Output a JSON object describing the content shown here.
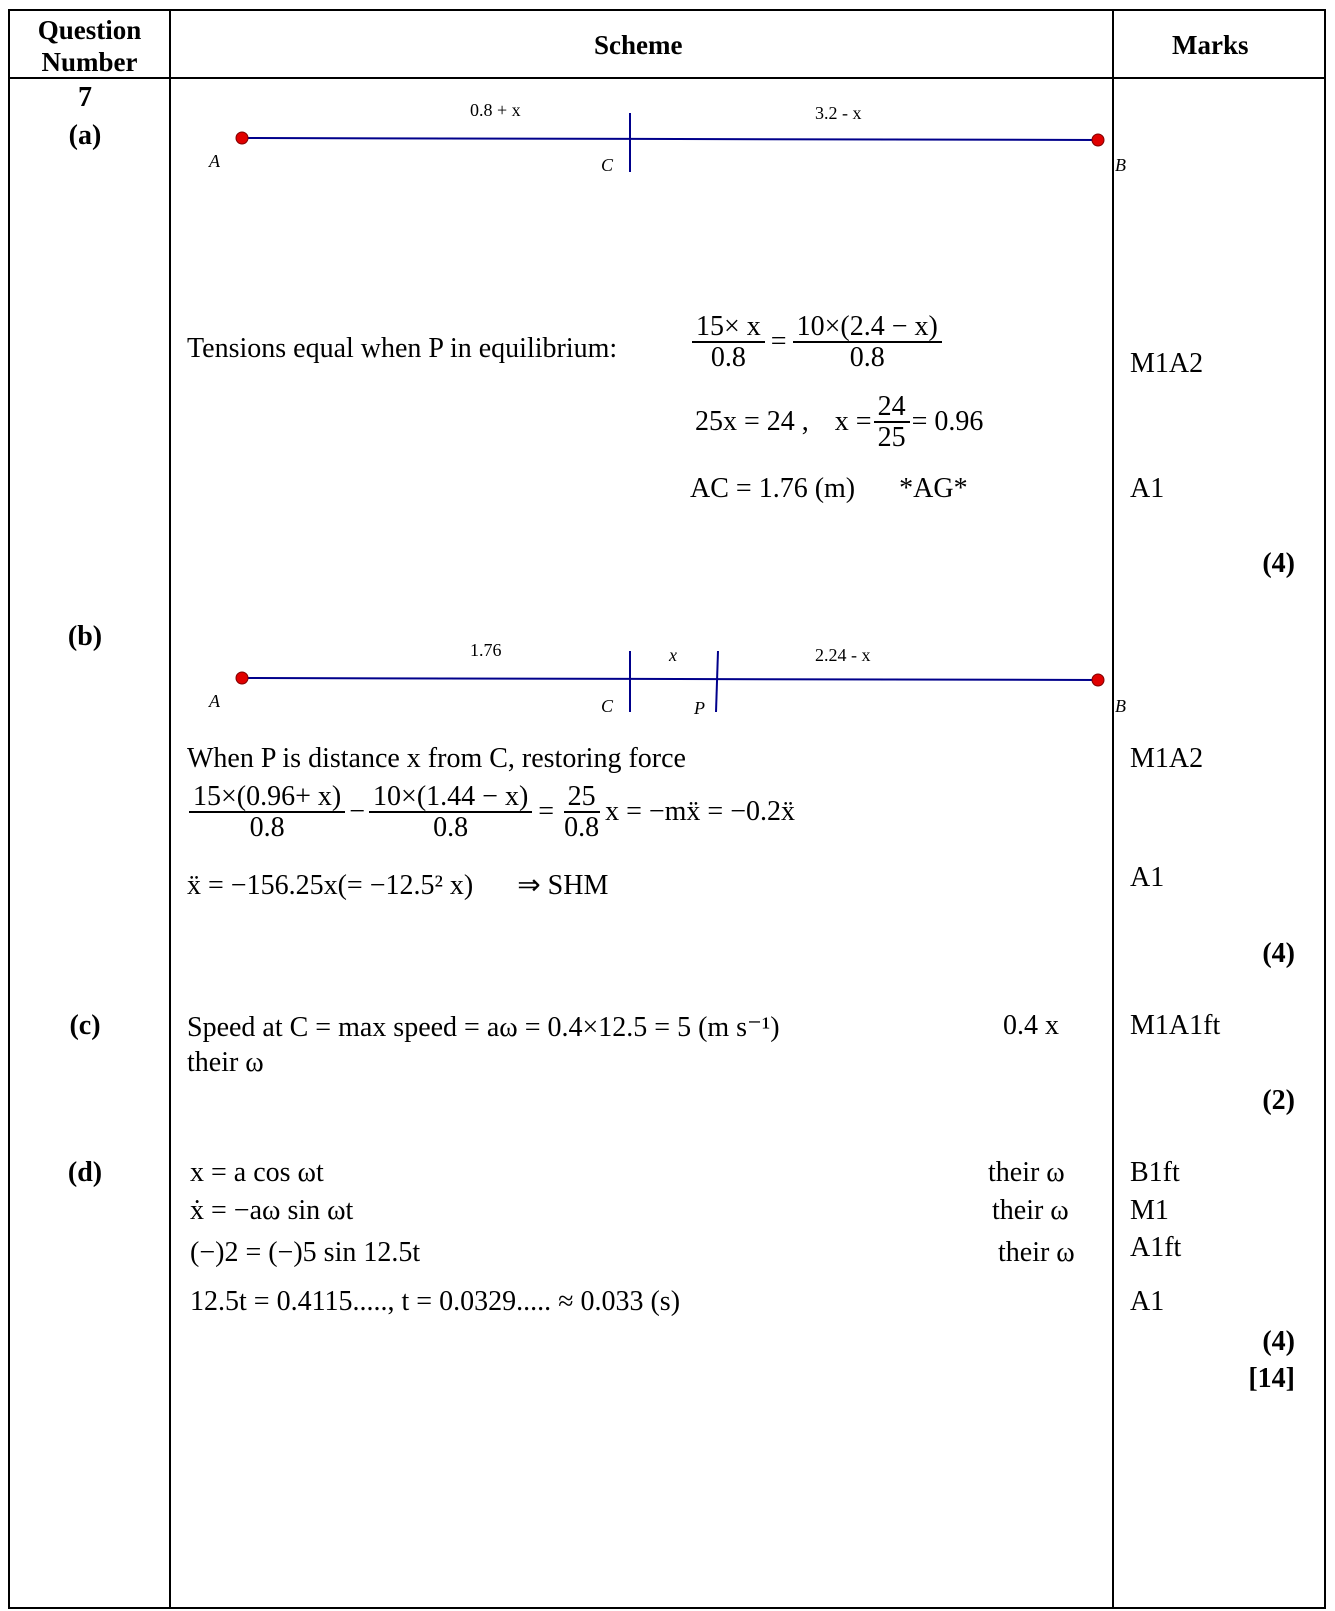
{
  "header": {
    "question_number": "Question Number",
    "scheme": "Scheme",
    "marks": "Marks"
  },
  "question": {
    "number": "7"
  },
  "part_a": {
    "label": "(a)",
    "diagram": {
      "left_len": "0.8 + x",
      "right_len": "3.2 - x",
      "A": "A",
      "C": "C",
      "B": "B"
    },
    "line1_text": "Tensions equal when P in equilibrium:",
    "eq1": {
      "lhs_num": "15× x",
      "lhs_den": "0.8",
      "rhs_num": "10×(2.4 − x)",
      "rhs_den": "0.8"
    },
    "line2_a": "25x = 24 ,",
    "line2_b": "x =",
    "line2_num": "24",
    "line2_den": "25",
    "line2_c": "= 0.96",
    "line3": "AC = 1.76 (m)",
    "line3_ag": "*AG*",
    "marks": [
      "M1A2",
      "A1"
    ],
    "total": "(4)"
  },
  "part_b": {
    "label": "(b)",
    "diagram": {
      "left_len": "1.76",
      "mid_len": "x",
      "right_len": "2.24 - x",
      "A": "A",
      "C": "C",
      "P": "P",
      "B": "B"
    },
    "line1": "When P is distance x from C, restoring force",
    "f1_num": "15×(0.96+ x)",
    "f1_den": "0.8",
    "f2_num": "10×(1.44 − x)",
    "f2_den": "0.8",
    "f3_num": "25",
    "f3_den": "0.8",
    "eq_tail": "x = −mẍ = −0.2ẍ",
    "line3": "ẍ = −156.25x(= −12.5² x)",
    "line3_shm": "⇒  SHM",
    "marks": [
      "M1A2",
      "A1"
    ],
    "total": "(4)"
  },
  "part_c": {
    "label": "(c)",
    "line1": "Speed at C = max speed =  aω = 0.4×12.5 = 5 (m s⁻¹)",
    "line1_note": "0.4 x",
    "line2": "their ω",
    "marks": [
      "M1A1ft"
    ],
    "total": "(2)"
  },
  "part_d": {
    "label": "(d)",
    "lines": [
      {
        "text": "x = a cos ωt",
        "note": "their ω",
        "mark": "B1ft"
      },
      {
        "text": "ẋ = −aω sin ωt",
        "note": "their ω",
        "mark": "M1"
      },
      {
        "text": "(−)2 = (−)5 sin 12.5t",
        "note": "their ω",
        "mark": "A1ft"
      },
      {
        "text": "12.5t = 0.4115.....,    t = 0.0329..... ≈ 0.033 (s)",
        "note": "",
        "mark": "A1"
      }
    ],
    "total": "(4)",
    "grand_total": "[14]"
  },
  "colors": {
    "line": "#00008B",
    "dot": "#e00000"
  }
}
